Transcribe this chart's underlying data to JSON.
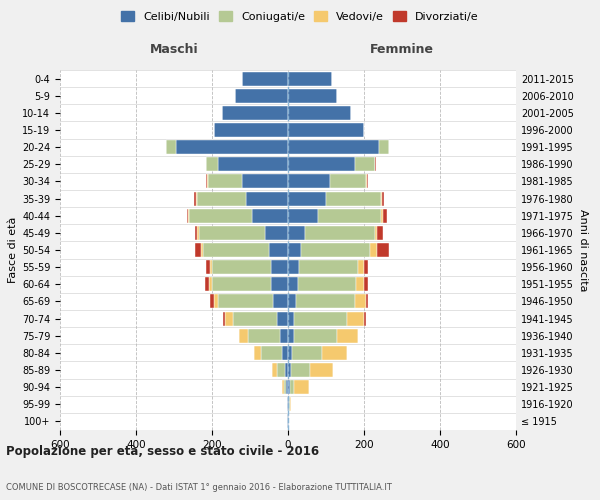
{
  "age_groups": [
    "100+",
    "95-99",
    "90-94",
    "85-89",
    "80-84",
    "75-79",
    "70-74",
    "65-69",
    "60-64",
    "55-59",
    "50-54",
    "45-49",
    "40-44",
    "35-39",
    "30-34",
    "25-29",
    "20-24",
    "15-19",
    "10-14",
    "5-9",
    "0-4"
  ],
  "birth_years": [
    "≤ 1915",
    "1916-1920",
    "1921-1925",
    "1926-1930",
    "1931-1935",
    "1936-1940",
    "1941-1945",
    "1946-1950",
    "1951-1955",
    "1956-1960",
    "1961-1965",
    "1966-1970",
    "1971-1975",
    "1976-1980",
    "1981-1985",
    "1986-1990",
    "1991-1995",
    "1996-2000",
    "2001-2005",
    "2006-2010",
    "2011-2015"
  ],
  "colors": {
    "celibi": "#4472a8",
    "coniugati": "#b5c994",
    "vedovi": "#f5c96e",
    "divorziati": "#c0392b"
  },
  "males": {
    "celibi": [
      2,
      2,
      5,
      8,
      15,
      20,
      30,
      40,
      45,
      45,
      50,
      60,
      95,
      110,
      120,
      185,
      295,
      195,
      175,
      140,
      120
    ],
    "coniugati": [
      0,
      0,
      5,
      20,
      55,
      85,
      115,
      145,
      155,
      155,
      175,
      175,
      165,
      130,
      90,
      30,
      25,
      0,
      0,
      0,
      0
    ],
    "vedovi": [
      0,
      0,
      5,
      15,
      20,
      25,
      20,
      10,
      8,
      5,
      5,
      5,
      3,
      2,
      2,
      0,
      2,
      0,
      0,
      0,
      0
    ],
    "divorziati": [
      0,
      0,
      0,
      0,
      0,
      0,
      5,
      10,
      10,
      10,
      15,
      5,
      3,
      5,
      3,
      0,
      0,
      0,
      0,
      0,
      0
    ]
  },
  "females": {
    "celibi": [
      2,
      2,
      5,
      8,
      10,
      15,
      15,
      20,
      25,
      30,
      35,
      45,
      80,
      100,
      110,
      175,
      240,
      200,
      165,
      130,
      115
    ],
    "coniugati": [
      0,
      2,
      10,
      50,
      80,
      115,
      140,
      155,
      155,
      155,
      180,
      185,
      165,
      145,
      95,
      55,
      25,
      0,
      0,
      0,
      0
    ],
    "vedovi": [
      0,
      5,
      40,
      60,
      65,
      55,
      45,
      30,
      20,
      15,
      20,
      5,
      5,
      3,
      3,
      0,
      0,
      0,
      0,
      0,
      0
    ],
    "divorziati": [
      0,
      0,
      0,
      0,
      0,
      0,
      5,
      5,
      10,
      10,
      30,
      15,
      10,
      5,
      3,
      2,
      0,
      0,
      0,
      0,
      0
    ]
  },
  "xlim": 600,
  "title": "Popolazione per età, sesso e stato civile - 2016",
  "subtitle": "COMUNE DI BOSCOTRECASE (NA) - Dati ISTAT 1° gennaio 2016 - Elaborazione TUTTITALIA.IT",
  "ylabel_left": "Fasce di età",
  "ylabel_right": "Anni di nascita",
  "legend_labels": [
    "Celibi/Nubili",
    "Coniugati/e",
    "Vedovi/e",
    "Divorziati/e"
  ],
  "maschi_label": "Maschi",
  "femmine_label": "Femmine",
  "bg_color": "#f0f0f0",
  "plot_bg_color": "#ffffff"
}
